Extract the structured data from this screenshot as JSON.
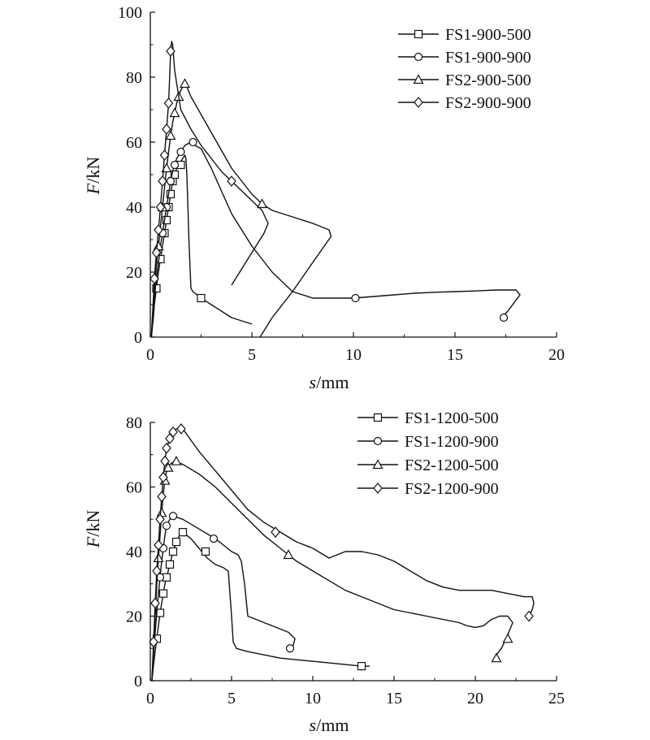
{
  "chart_data": [
    {
      "type": "line",
      "xlabel": {
        "italic": "s",
        "rest": "/mm"
      },
      "ylabel": {
        "italic": "F",
        "rest": "/kN"
      },
      "xlim": [
        0,
        20
      ],
      "ylim": [
        0,
        100
      ],
      "xticks": [
        0,
        5,
        10,
        15,
        20
      ],
      "yticks": [
        0,
        20,
        40,
        60,
        80,
        100
      ],
      "grid": false,
      "legend_position": "top-right",
      "series": [
        {
          "name": "FS1-900-500",
          "marker": "square",
          "x": [
            0.05,
            0.1,
            0.15,
            0.2,
            0.3,
            0.4,
            0.5,
            0.6,
            0.7,
            0.8,
            0.9,
            1.0,
            1.1,
            1.2,
            1.3,
            1.4,
            1.5,
            1.6,
            1.7,
            1.75,
            1.8,
            1.85,
            1.9,
            1.95,
            2.0,
            2.1,
            2.5,
            3.0,
            3.5,
            4.0,
            4.5,
            5.0
          ],
          "y": [
            0,
            3,
            6,
            10,
            15,
            20,
            24,
            28,
            32,
            36,
            40,
            44,
            48,
            50,
            52,
            53,
            54,
            55,
            56,
            55,
            50,
            40,
            30,
            22,
            15,
            14,
            12,
            10,
            8,
            6,
            5,
            4
          ],
          "marker_x": [
            0.3,
            0.5,
            0.7,
            0.8,
            0.9,
            1.0,
            1.1,
            1.2,
            1.5,
            2.5
          ],
          "marker_y": [
            15,
            24,
            32,
            36,
            40,
            44,
            48,
            50,
            53,
            12
          ]
        },
        {
          "name": "FS1-900-900",
          "marker": "circle",
          "x": [
            0.05,
            0.1,
            0.15,
            0.2,
            0.3,
            0.4,
            0.5,
            0.6,
            0.7,
            0.8,
            0.9,
            1.0,
            1.1,
            1.2,
            1.3,
            1.4,
            1.5,
            1.7,
            2.0,
            2.2,
            2.5,
            3.0,
            3.5,
            4.0,
            5.0,
            6.0,
            7.0,
            8.0,
            9.0,
            10.0,
            11.0,
            12.0,
            13.0,
            14.0,
            15.0,
            16.0,
            17.0,
            18.0,
            18.2,
            17.6,
            17.3
          ],
          "y": [
            0,
            4,
            8,
            12,
            18,
            23,
            28,
            32,
            36,
            40,
            44,
            48,
            51,
            53,
            55,
            56,
            57,
            59,
            60,
            59,
            58,
            52,
            45,
            38,
            28,
            20,
            14,
            12,
            12,
            12,
            12.5,
            13,
            13.5,
            13.8,
            14,
            14.2,
            14.5,
            14.5,
            13,
            8,
            6
          ],
          "marker_x": [
            0.6,
            0.8,
            1.0,
            1.2,
            1.5,
            2.1,
            10.1,
            17.4
          ],
          "marker_y": [
            32,
            40,
            48,
            53,
            57,
            60,
            12,
            6
          ]
        },
        {
          "name": "FS2-900-500",
          "marker": "triangle",
          "x": [
            0.05,
            0.1,
            0.15,
            0.2,
            0.3,
            0.4,
            0.5,
            0.6,
            0.7,
            0.8,
            0.9,
            1.0,
            1.1,
            1.2,
            1.3,
            1.4,
            1.5,
            1.6,
            1.7,
            1.8,
            2.0,
            3.0,
            4.0,
            5.0,
            5.5,
            6.0,
            7.0,
            8.0,
            8.8,
            8.9,
            8.0,
            7.0,
            6.0,
            5.4
          ],
          "y": [
            0,
            5,
            10,
            15,
            22,
            28,
            34,
            40,
            46,
            52,
            57,
            62,
            66,
            69,
            72,
            74,
            76,
            77,
            78,
            77,
            74,
            63,
            52,
            44,
            41,
            39,
            37,
            35,
            33,
            31,
            23,
            14,
            6,
            0
          ],
          "marker_x": [
            0.4,
            0.6,
            0.8,
            1.0,
            1.2,
            1.4,
            1.7,
            5.5
          ],
          "marker_y": [
            28,
            40,
            52,
            62,
            69,
            74,
            78,
            41
          ]
        },
        {
          "name": "FS2-900-900",
          "marker": "diamond",
          "x": [
            0.05,
            0.1,
            0.15,
            0.2,
            0.3,
            0.4,
            0.5,
            0.6,
            0.7,
            0.8,
            0.9,
            0.95,
            1.0,
            1.05,
            1.1,
            1.2,
            1.5,
            2.0,
            2.5,
            3.0,
            3.5,
            4.0,
            4.5,
            5.0,
            5.5,
            5.8,
            5.6,
            5.0,
            4.5,
            4.0
          ],
          "y": [
            0,
            6,
            12,
            18,
            26,
            33,
            40,
            48,
            56,
            64,
            72,
            80,
            88,
            91,
            90,
            82,
            70,
            64,
            59,
            55,
            51,
            48,
            45,
            42,
            39,
            35,
            32,
            26,
            21,
            16
          ],
          "marker_x": [
            0.2,
            0.3,
            0.4,
            0.5,
            0.6,
            0.7,
            0.8,
            0.9,
            1.0,
            4.0
          ],
          "marker_y": [
            18,
            26,
            33,
            40,
            48,
            56,
            64,
            72,
            88,
            48
          ]
        }
      ]
    },
    {
      "type": "line",
      "xlabel": {
        "italic": "s",
        "rest": "/mm"
      },
      "ylabel": {
        "italic": "F",
        "rest": "/kN"
      },
      "xlim": [
        0,
        25
      ],
      "ylim": [
        0,
        80
      ],
      "xticks": [
        0,
        5,
        10,
        15,
        20,
        25
      ],
      "yticks": [
        0,
        20,
        40,
        60,
        80
      ],
      "grid": false,
      "legend_position": "top-right",
      "series": [
        {
          "name": "FS1-1200-500",
          "marker": "square",
          "x": [
            0.1,
            0.2,
            0.3,
            0.4,
            0.5,
            0.6,
            0.7,
            0.8,
            0.9,
            1.0,
            1.2,
            1.4,
            1.6,
            1.8,
            2.0,
            2.5,
            3.0,
            3.5,
            4.0,
            4.5,
            4.8,
            5.0,
            5.1,
            5.3,
            6.0,
            7.0,
            8.0,
            9.0,
            10.0,
            11.0,
            12.0,
            13.0,
            13.5
          ],
          "y": [
            0,
            5,
            9,
            13,
            17,
            21,
            24,
            27,
            30,
            32,
            36,
            40,
            43,
            45,
            46,
            44,
            41,
            38,
            36,
            35,
            34,
            20,
            12,
            10,
            9,
            8,
            7,
            6.5,
            6,
            5.5,
            5,
            4.5,
            4.5
          ],
          "marker_x": [
            0.4,
            0.6,
            0.8,
            1.0,
            1.2,
            1.4,
            1.6,
            2.0,
            3.4,
            13.0
          ],
          "marker_y": [
            13,
            21,
            27,
            32,
            36,
            40,
            43,
            46,
            40,
            4.5
          ]
        },
        {
          "name": "FS1-1200-900",
          "marker": "circle",
          "x": [
            0.1,
            0.2,
            0.3,
            0.4,
            0.5,
            0.6,
            0.7,
            0.8,
            0.9,
            1.0,
            1.2,
            1.4,
            2.0,
            3.0,
            4.0,
            5.0,
            5.4,
            5.6,
            5.8,
            6.0,
            6.5,
            7.0,
            7.5,
            8.0,
            8.5,
            8.9,
            8.8,
            8.5
          ],
          "y": [
            0,
            8,
            15,
            21,
            27,
            32,
            37,
            41,
            45,
            48,
            50,
            51,
            50,
            47,
            44,
            40,
            39,
            37,
            30,
            20,
            19,
            18,
            17,
            16,
            15,
            13,
            11,
            10
          ],
          "marker_x": [
            0.6,
            0.8,
            1.0,
            1.4,
            3.9,
            8.6
          ],
          "marker_y": [
            32,
            41,
            48,
            51,
            44,
            10
          ]
        },
        {
          "name": "FS2-1200-500",
          "marker": "triangle",
          "x": [
            0.1,
            0.2,
            0.3,
            0.4,
            0.5,
            0.6,
            0.7,
            0.8,
            0.9,
            1.0,
            1.2,
            1.5,
            2.0,
            3.0,
            4.0,
            5.0,
            6.0,
            7.0,
            8.0,
            8.5,
            9.0,
            10.0,
            11.0,
            12.0,
            13.0,
            14.0,
            15.0,
            16.0,
            17.0,
            18.0,
            19.0,
            19.5,
            20.0,
            20.5,
            21.0,
            21.5,
            22.0,
            22.3,
            21.9,
            21.6,
            21.3
          ],
          "y": [
            0,
            10,
            20,
            30,
            38,
            45,
            52,
            58,
            62,
            65,
            67,
            68,
            67,
            64,
            60,
            55,
            50,
            45,
            41,
            39,
            37,
            34,
            31,
            28,
            26,
            24,
            22,
            21,
            20,
            19,
            18,
            17,
            16.5,
            17,
            19,
            20,
            20,
            18,
            13,
            10,
            8
          ],
          "marker_x": [
            0.5,
            0.7,
            0.9,
            1.1,
            1.6,
            8.5,
            22.0,
            21.3
          ],
          "marker_y": [
            38,
            52,
            62,
            66,
            68,
            39,
            13,
            7
          ]
        },
        {
          "name": "FS2-1200-900",
          "marker": "diamond",
          "x": [
            0.1,
            0.2,
            0.3,
            0.4,
            0.5,
            0.6,
            0.7,
            0.8,
            0.9,
            1.0,
            1.2,
            1.4,
            1.6,
            2.0,
            3.0,
            4.0,
            5.0,
            6.0,
            7.0,
            8.0,
            9.0,
            10.0,
            11.0,
            12.0,
            13.0,
            14.0,
            15.0,
            16.0,
            17.0,
            18.0,
            19.0,
            20.0,
            21.0,
            22.0,
            23.0,
            23.5,
            23.6,
            23.5,
            23.3
          ],
          "y": [
            0,
            12,
            24,
            34,
            42,
            50,
            57,
            63,
            68,
            72,
            75,
            77,
            78,
            78,
            71,
            65,
            59,
            53,
            49,
            46,
            43,
            41,
            38,
            40,
            40,
            39,
            37,
            34,
            31,
            29,
            28,
            28,
            28,
            27,
            26,
            26,
            24,
            22,
            20
          ],
          "marker_x": [
            0.2,
            0.3,
            0.4,
            0.5,
            0.6,
            0.7,
            0.8,
            0.9,
            1.0,
            1.2,
            1.4,
            1.9,
            7.7,
            23.3
          ],
          "marker_y": [
            12,
            24,
            34,
            42,
            50,
            57,
            63,
            68,
            72,
            75,
            77,
            78,
            46,
            20
          ]
        }
      ]
    }
  ]
}
